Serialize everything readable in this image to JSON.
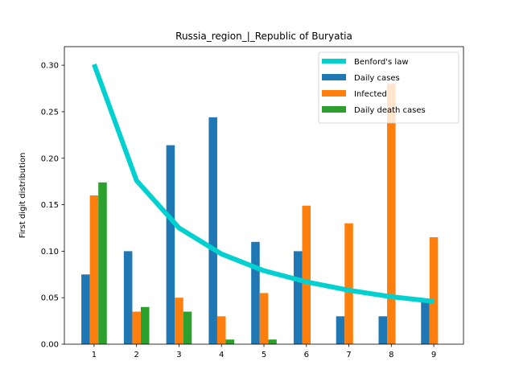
{
  "chart_data": {
    "type": "bar",
    "title": "Russia_region_|_Republic of Buryatia",
    "xlabel": "",
    "ylabel": "First digit distribution",
    "categories": [
      "1",
      "2",
      "3",
      "4",
      "5",
      "6",
      "7",
      "8",
      "9"
    ],
    "ylim": [
      0,
      0.32
    ],
    "yticks": [
      "0.00",
      "0.05",
      "0.10",
      "0.15",
      "0.20",
      "0.25",
      "0.30"
    ],
    "ytick_values": [
      0,
      0.05,
      0.1,
      0.15,
      0.2,
      0.25,
      0.3
    ],
    "legend_position": "top-right",
    "series": [
      {
        "name": "Daily cases",
        "kind": "bar",
        "color": "#1f77b4",
        "values": [
          0.075,
          0.1,
          0.214,
          0.244,
          0.11,
          0.1,
          0.03,
          0.03,
          0.045
        ]
      },
      {
        "name": "Infected",
        "kind": "bar",
        "color": "#ff7f0e",
        "values": [
          0.16,
          0.035,
          0.05,
          0.03,
          0.055,
          0.149,
          0.13,
          0.28,
          0.115
        ]
      },
      {
        "name": "Daily death cases",
        "kind": "bar",
        "color": "#2ca02c",
        "values": [
          0.174,
          0.04,
          0.035,
          0.005,
          0.005,
          0,
          0,
          0,
          0
        ]
      },
      {
        "name": "Benford's law",
        "kind": "line",
        "color": "#00d0d0",
        "values": [
          0.301,
          0.176,
          0.125,
          0.097,
          0.079,
          0.067,
          0.058,
          0.051,
          0.046
        ]
      }
    ]
  }
}
